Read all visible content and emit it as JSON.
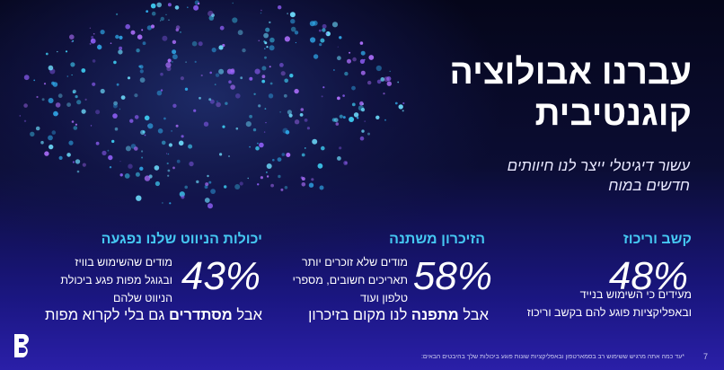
{
  "slide": {
    "title": [
      "עברנו אבולוציה",
      "קוגנטיבית"
    ],
    "subtitle": [
      "עשור דיגיטלי ייצר לנו חיוותים",
      "חדשים במוח"
    ],
    "columns": [
      {
        "heading": "קשב וריכוז",
        "percent": "48%",
        "description": [
          "מעידים כי השימוש בנייד",
          "ובאפליקציות פוגע להם בקשב וריכוז"
        ]
      },
      {
        "heading": "הזיכרון משתנה",
        "percent": "58%",
        "description": [
          "מודים שלא זוכרים יותר",
          "תאריכים חשובים, מספרי",
          "טלפון ועוד"
        ],
        "bottom_line": {
          "before": "אבל ",
          "bold": "מתפנה",
          "after": " לנו מקום בזיכרון"
        }
      },
      {
        "heading": "יכולות הניווט שלנו נפגעה",
        "percent": "43%",
        "description": [
          "מודים שהשימוש בוויז",
          "ובגוגל מפות פגע ביכולת",
          "הניווט שלהם"
        ],
        "bottom_line": {
          "before": "אבל ",
          "bold": "מסתדרים",
          "after": " גם בלי לקרוא מפות"
        }
      }
    ],
    "footnote": "*עד כמה אתה מרגיש ששימוש רב בסמארטפון ובאפליקציות שונות פוגע ביכולות שלך בהיבטים הבאים:",
    "page_number": "7"
  }
}
